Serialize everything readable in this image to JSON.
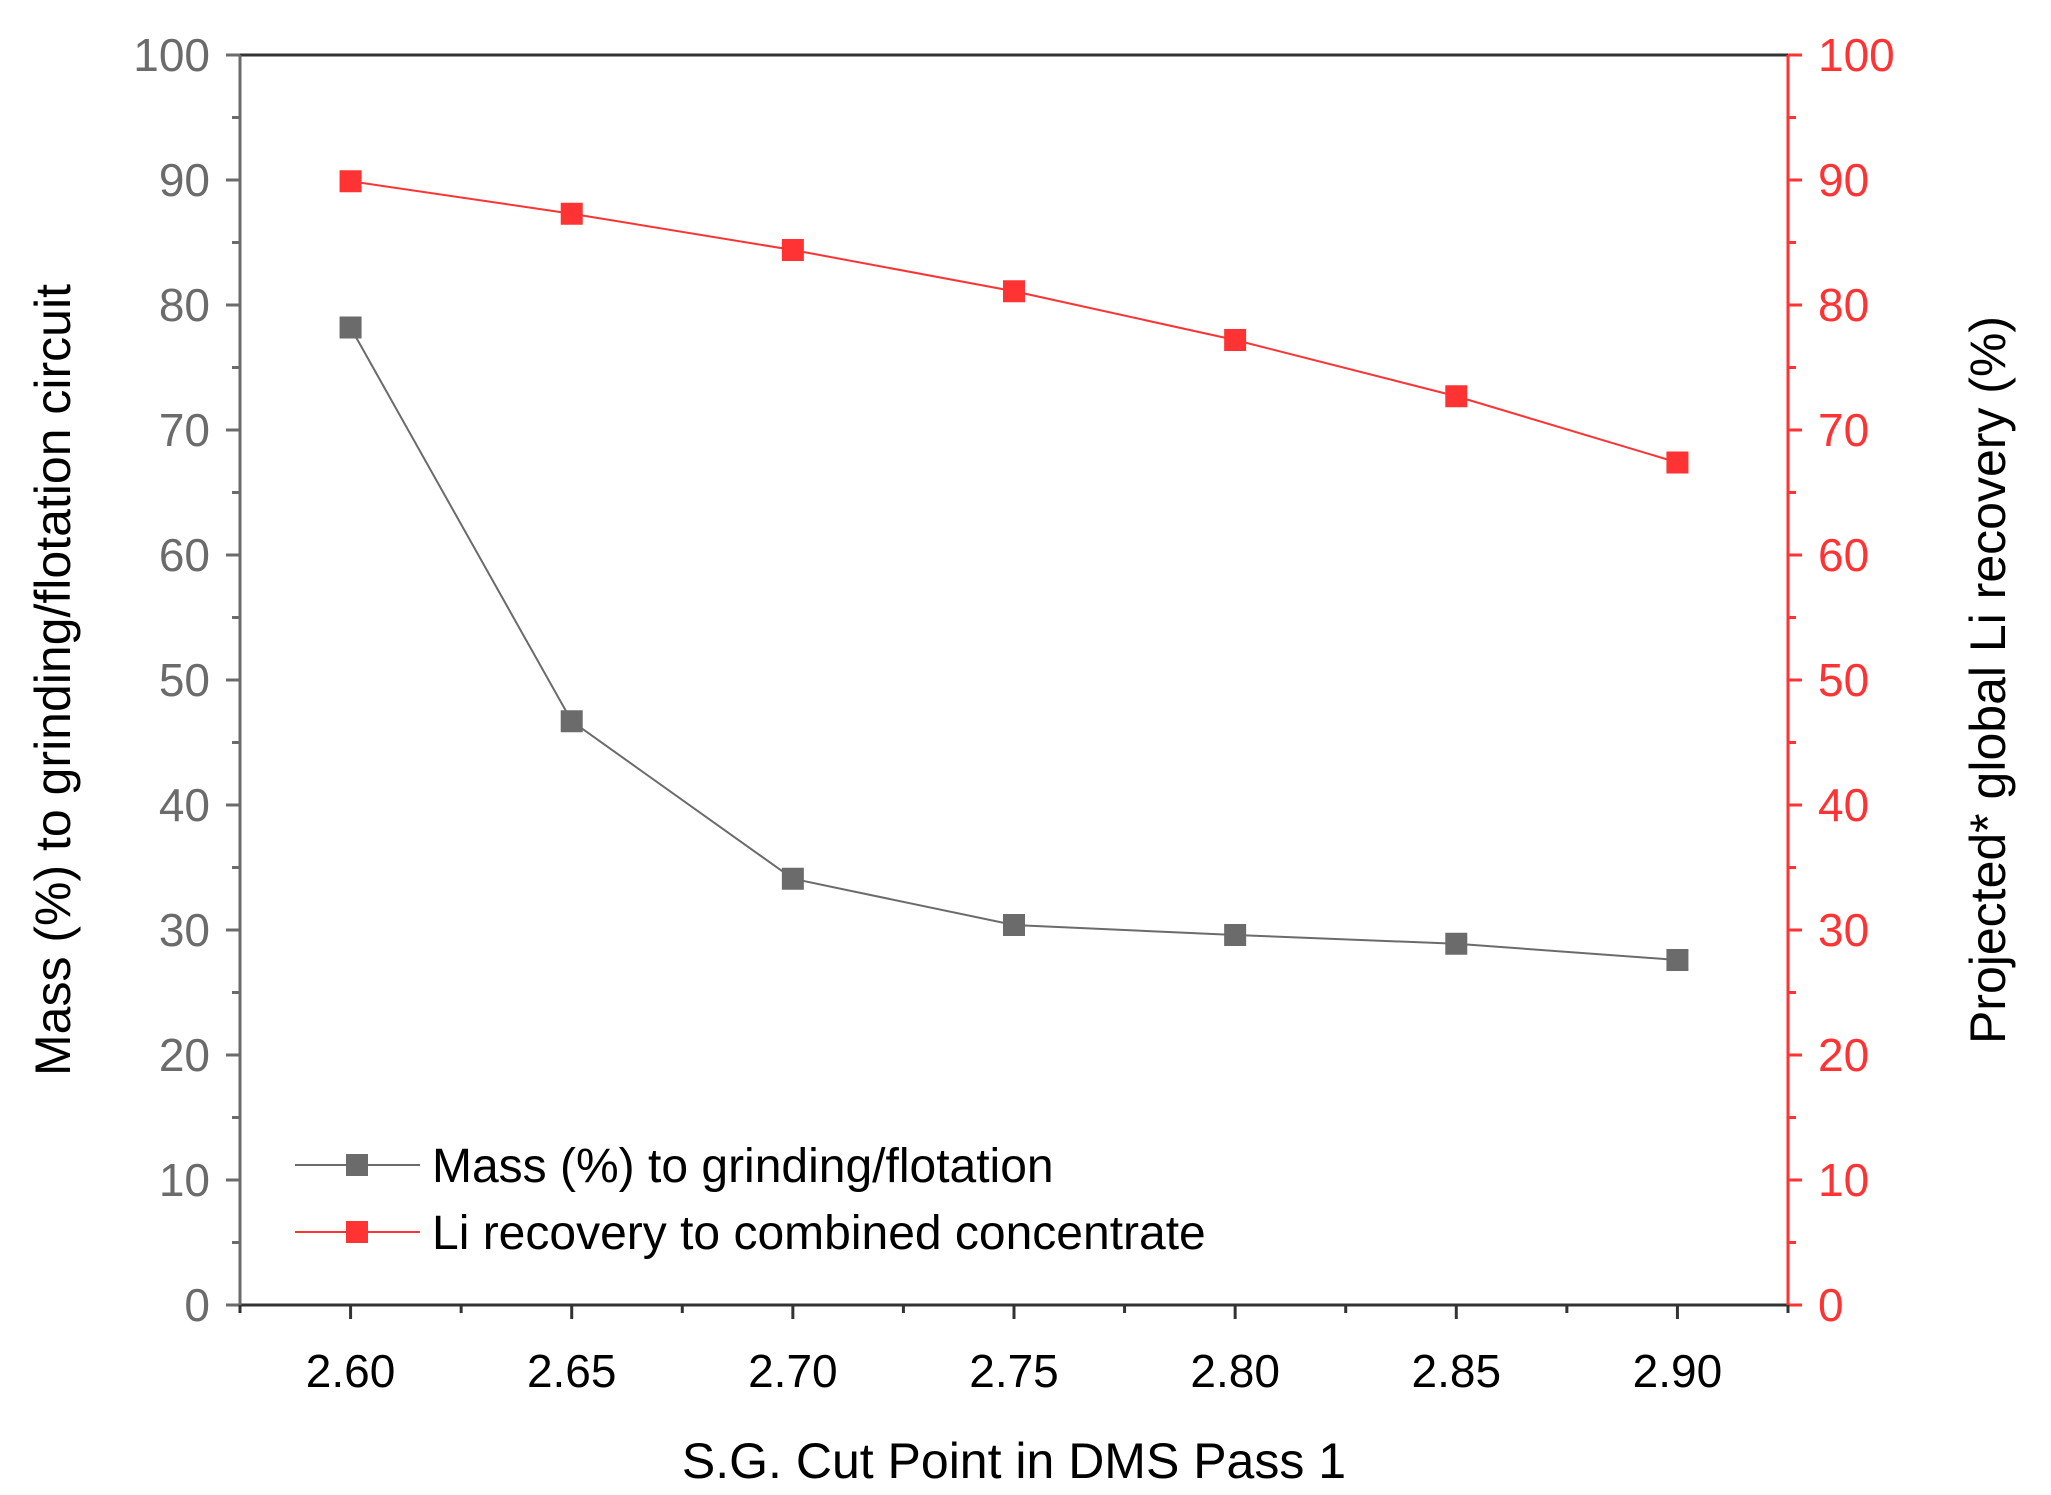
{
  "chart_data": {
    "type": "line",
    "x": [
      2.6,
      2.65,
      2.7,
      2.75,
      2.8,
      2.85,
      2.9
    ],
    "x_tick_labels": [
      "2.60",
      "2.65",
      "2.70",
      "2.75",
      "2.80",
      "2.85",
      "2.90"
    ],
    "xlabel": "S.G. Cut Point in DMS Pass 1",
    "xlim": [
      2.575,
      2.925
    ],
    "y_left": {
      "label": "Mass (%) to grinding/flotation circuit",
      "ylim": [
        0,
        100
      ],
      "ticks": [
        0,
        10,
        20,
        30,
        40,
        50,
        60,
        70,
        80,
        90,
        100
      ],
      "tick_labels": [
        "0",
        "10",
        "20",
        "30",
        "40",
        "50",
        "60",
        "70",
        "80",
        "90",
        "100"
      ],
      "color": "#6b6b6b"
    },
    "y_right": {
      "label": "Projected* global Li recovery (%)",
      "ylim": [
        0,
        100
      ],
      "ticks": [
        0,
        10,
        20,
        30,
        40,
        50,
        60,
        70,
        80,
        90,
        100
      ],
      "tick_labels": [
        "0",
        "10",
        "20",
        "30",
        "40",
        "50",
        "60",
        "70",
        "80",
        "90",
        "100"
      ],
      "color": "#ff3333"
    },
    "series": [
      {
        "name": "Mass (%) to grinding/flotation",
        "axis": "left",
        "color": "#6b6b6b",
        "marker": "square",
        "values": [
          78.2,
          46.7,
          34.1,
          30.4,
          29.6,
          28.9,
          27.6
        ]
      },
      {
        "name": "Li recovery to combined concentrate",
        "axis": "right",
        "color": "#ff3333",
        "marker": "square",
        "values": [
          89.9,
          87.3,
          84.4,
          81.1,
          77.2,
          72.7,
          67.4
        ]
      }
    ],
    "legend": {
      "position": "bottom-left"
    },
    "grid": false
  }
}
